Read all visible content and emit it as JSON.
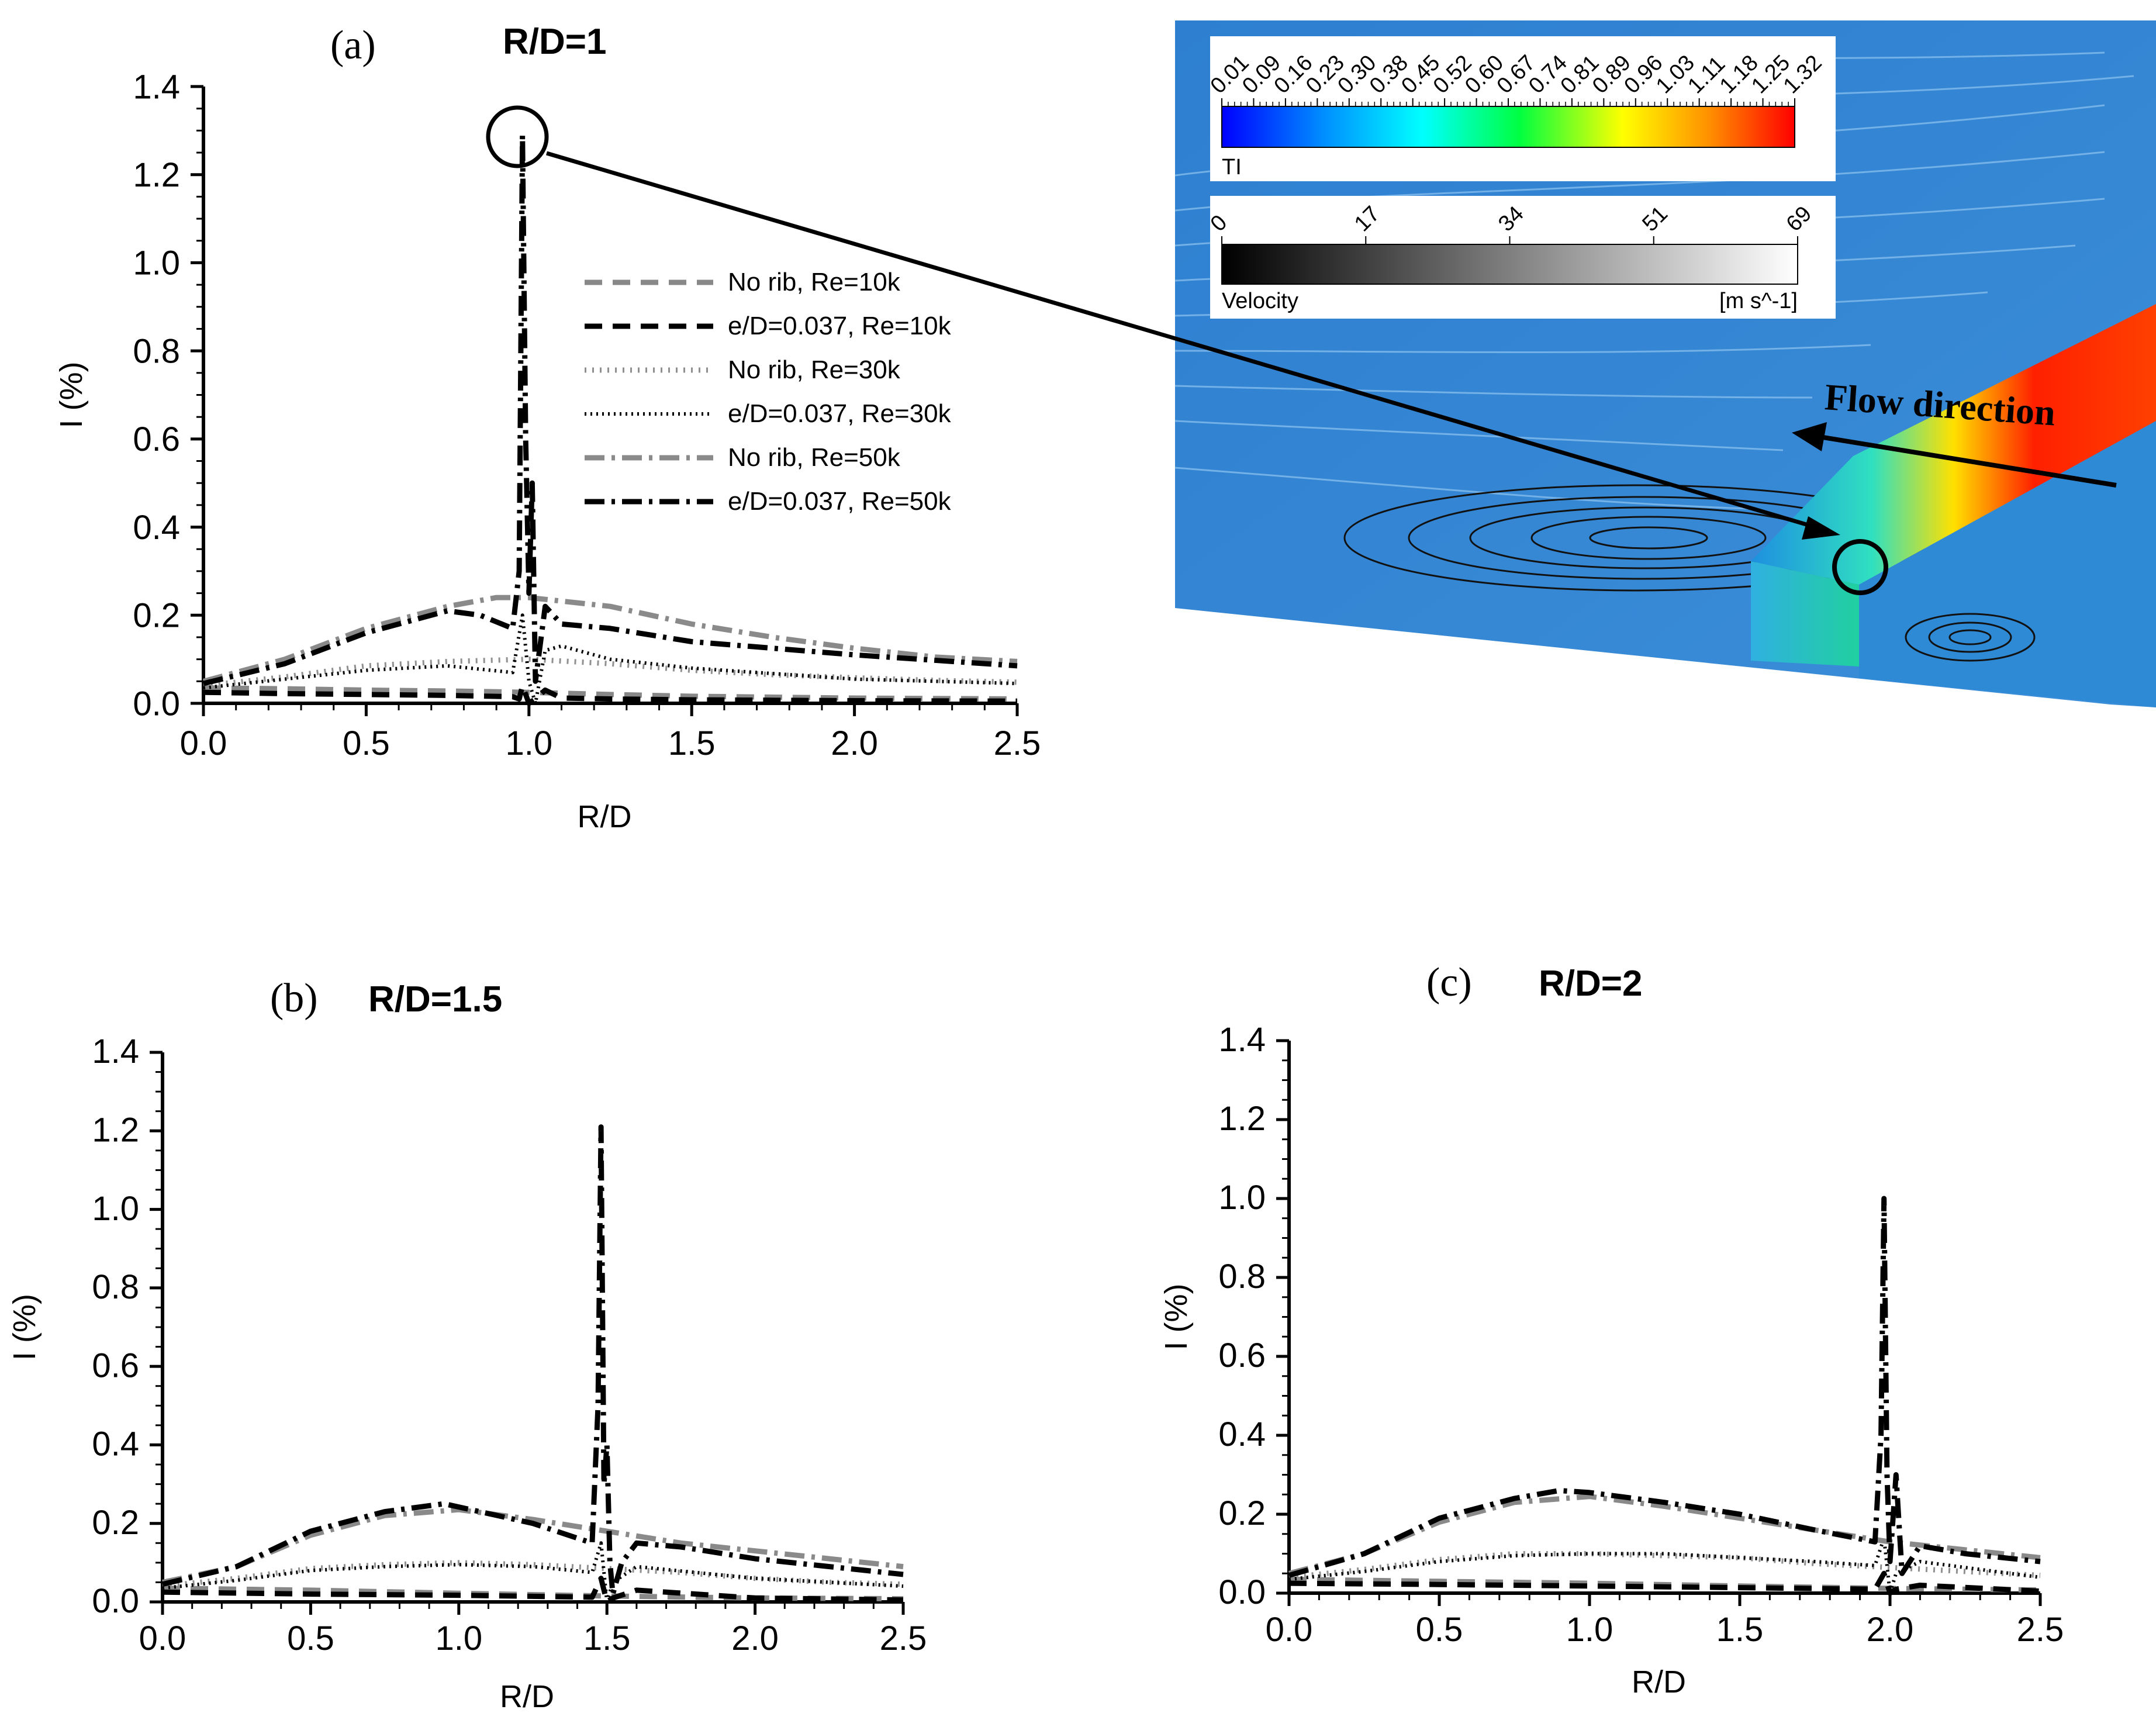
{
  "colors": {
    "black": "#000000",
    "gray": "#888888",
    "lightgray": "#9a9a9a"
  },
  "series_styles": [
    {
      "name": "No rib, Re=10k",
      "color": "#888888",
      "dash": "30,18",
      "width": 9
    },
    {
      "name": "e/D=0.037, Re=10k",
      "color": "#000000",
      "dash": "30,18",
      "width": 9
    },
    {
      "name": "No rib, Re=30k",
      "color": "#909090",
      "dash": "3,10",
      "width": 9
    },
    {
      "name": "e/D=0.037, Re=30k",
      "color": "#000000",
      "dash": "3,7",
      "width": 6
    },
    {
      "name": "No rib, Re=50k",
      "color": "#8a8a8a",
      "dash": "34,12,6,12",
      "width": 9
    },
    {
      "name": "e/D=0.037, Re=50k",
      "color": "#000000",
      "dash": "34,12,6,12",
      "width": 9
    }
  ],
  "chart_data": [
    {
      "type": "line",
      "panel": "(a)",
      "title": "R/D=1",
      "xlabel": "R/D",
      "ylabel": "I (%)",
      "xlim": [
        0,
        2.5
      ],
      "ylim": [
        0,
        1.4
      ],
      "xticks": [
        "0.0",
        "0.5",
        "1.0",
        "1.5",
        "2.0",
        "2.5"
      ],
      "yticks": [
        "0.0",
        "0.2",
        "0.4",
        "0.6",
        "0.8",
        "1.0",
        "1.2",
        "1.4"
      ],
      "legend": [
        "No rib, Re=10k",
        "e/D=0.037, Re=10k",
        "No rib, Re=30k",
        "e/D=0.037, Re=30k",
        "No rib, Re=50k",
        "e/D=0.037, Re=50k"
      ],
      "series": [
        {
          "name": "No rib, Re=10k",
          "x": [
            0,
            0.25,
            0.5,
            0.75,
            1.0,
            1.25,
            1.5,
            2.0,
            2.5
          ],
          "values": [
            0.035,
            0.033,
            0.03,
            0.028,
            0.025,
            0.02,
            0.016,
            0.012,
            0.01
          ]
        },
        {
          "name": "e/D=0.037, Re=10k",
          "x": [
            0,
            0.25,
            0.5,
            0.75,
            0.95,
            0.97,
            0.98,
            1.0,
            1.02,
            1.05,
            1.1,
            1.25,
            1.5,
            2.0,
            2.5
          ],
          "values": [
            0.025,
            0.022,
            0.02,
            0.018,
            0.015,
            0.01,
            0.04,
            0.0,
            0.01,
            0.03,
            0.012,
            0.01,
            0.008,
            0.006,
            0.005
          ]
        },
        {
          "name": "No rib, Re=30k",
          "x": [
            0,
            0.25,
            0.5,
            0.75,
            1.0,
            1.25,
            1.5,
            1.75,
            2.0,
            2.25,
            2.5
          ],
          "values": [
            0.04,
            0.06,
            0.085,
            0.095,
            0.1,
            0.09,
            0.075,
            0.065,
            0.058,
            0.052,
            0.048
          ]
        },
        {
          "name": "e/D=0.037, Re=30k",
          "x": [
            0,
            0.25,
            0.5,
            0.75,
            0.95,
            0.98,
            1.0,
            1.02,
            1.05,
            1.1,
            1.25,
            1.5,
            2.0,
            2.5
          ],
          "values": [
            0.035,
            0.055,
            0.075,
            0.085,
            0.07,
            0.2,
            0.05,
            0.0,
            0.12,
            0.13,
            0.1,
            0.08,
            0.055,
            0.045
          ]
        },
        {
          "name": "No rib, Re=50k",
          "x": [
            0,
            0.25,
            0.5,
            0.75,
            0.9,
            1.0,
            1.25,
            1.5,
            1.75,
            2.0,
            2.25,
            2.5
          ],
          "values": [
            0.05,
            0.1,
            0.17,
            0.22,
            0.24,
            0.24,
            0.22,
            0.18,
            0.15,
            0.125,
            0.105,
            0.095
          ]
        },
        {
          "name": "e/D=0.037, Re=50k",
          "x": [
            0,
            0.25,
            0.5,
            0.75,
            0.85,
            0.95,
            0.97,
            0.98,
            0.99,
            1.0,
            1.01,
            1.02,
            1.05,
            1.1,
            1.25,
            1.5,
            2.0,
            2.5
          ],
          "values": [
            0.045,
            0.09,
            0.16,
            0.21,
            0.2,
            0.17,
            0.3,
            1.29,
            0.6,
            0.25,
            0.5,
            0.05,
            0.22,
            0.18,
            0.17,
            0.14,
            0.11,
            0.085
          ]
        }
      ]
    },
    {
      "type": "line",
      "panel": "(b)",
      "title": "R/D=1.5",
      "xlabel": "R/D",
      "ylabel": "I (%)",
      "xlim": [
        0,
        2.5
      ],
      "ylim": [
        0,
        1.4
      ],
      "xticks": [
        "0.0",
        "0.5",
        "1.0",
        "1.5",
        "2.0",
        "2.5"
      ],
      "yticks": [
        "0.0",
        "0.2",
        "0.4",
        "0.6",
        "0.8",
        "1.0",
        "1.2",
        "1.4"
      ],
      "series": [
        {
          "name": "No rib, Re=10k",
          "x": [
            0,
            0.5,
            1.0,
            1.5,
            2.0,
            2.5
          ],
          "values": [
            0.035,
            0.03,
            0.022,
            0.015,
            0.01,
            0.008
          ]
        },
        {
          "name": "e/D=0.037, Re=10k",
          "x": [
            0,
            0.5,
            1.0,
            1.45,
            1.48,
            1.5,
            1.52,
            1.6,
            2.0,
            2.5
          ],
          "values": [
            0.025,
            0.02,
            0.017,
            0.012,
            0.06,
            0.0,
            0.01,
            0.03,
            0.01,
            0.005
          ]
        },
        {
          "name": "No rib, Re=30k",
          "x": [
            0,
            0.25,
            0.5,
            0.75,
            1.0,
            1.25,
            1.5,
            1.75,
            2.0,
            2.25,
            2.5
          ],
          "values": [
            0.04,
            0.06,
            0.085,
            0.095,
            0.1,
            0.095,
            0.085,
            0.075,
            0.06,
            0.05,
            0.045
          ]
        },
        {
          "name": "e/D=0.037, Re=30k",
          "x": [
            0,
            0.25,
            0.5,
            0.75,
            1.0,
            1.25,
            1.45,
            1.48,
            1.5,
            1.52,
            1.6,
            2.0,
            2.5
          ],
          "values": [
            0.035,
            0.055,
            0.08,
            0.09,
            0.095,
            0.09,
            0.075,
            0.15,
            0.0,
            0.05,
            0.09,
            0.06,
            0.04
          ]
        },
        {
          "name": "No rib, Re=50k",
          "x": [
            0,
            0.25,
            0.5,
            0.75,
            1.0,
            1.25,
            1.5,
            1.75,
            2.0,
            2.25,
            2.5
          ],
          "values": [
            0.05,
            0.09,
            0.17,
            0.22,
            0.235,
            0.21,
            0.18,
            0.15,
            0.13,
            0.11,
            0.09
          ]
        },
        {
          "name": "e/D=0.037, Re=50k",
          "x": [
            0,
            0.25,
            0.5,
            0.75,
            0.95,
            1.25,
            1.45,
            1.47,
            1.48,
            1.49,
            1.5,
            1.51,
            1.52,
            1.55,
            1.6,
            1.75,
            2.0,
            2.5
          ],
          "values": [
            0.045,
            0.09,
            0.18,
            0.23,
            0.25,
            0.2,
            0.15,
            0.5,
            1.21,
            0.3,
            0.4,
            0.1,
            0.02,
            0.1,
            0.15,
            0.14,
            0.11,
            0.07
          ]
        }
      ]
    },
    {
      "type": "line",
      "panel": "(c)",
      "title": "R/D=2",
      "xlabel": "R/D",
      "ylabel": "I (%)",
      "xlim": [
        0,
        2.5
      ],
      "ylim": [
        0,
        1.4
      ],
      "xticks": [
        "0.0",
        "0.5",
        "1.0",
        "1.5",
        "2.0",
        "2.5"
      ],
      "yticks": [
        "0.0",
        "0.2",
        "0.4",
        "0.6",
        "0.8",
        "1.0",
        "1.2",
        "1.4"
      ],
      "series": [
        {
          "name": "No rib, Re=10k",
          "x": [
            0,
            0.5,
            1.0,
            1.5,
            2.0,
            2.5
          ],
          "values": [
            0.035,
            0.03,
            0.025,
            0.018,
            0.012,
            0.008
          ]
        },
        {
          "name": "e/D=0.037, Re=10k",
          "x": [
            0,
            0.5,
            1.0,
            1.5,
            1.95,
            1.98,
            2.0,
            2.02,
            2.1,
            2.5
          ],
          "values": [
            0.025,
            0.022,
            0.018,
            0.014,
            0.01,
            0.05,
            0.0,
            0.01,
            0.02,
            0.005
          ]
        },
        {
          "name": "No rib, Re=30k",
          "x": [
            0,
            0.25,
            0.5,
            0.75,
            1.0,
            1.25,
            1.5,
            1.75,
            2.0,
            2.25,
            2.5
          ],
          "values": [
            0.04,
            0.06,
            0.085,
            0.1,
            0.1,
            0.095,
            0.09,
            0.075,
            0.065,
            0.055,
            0.045
          ]
        },
        {
          "name": "e/D=0.037, Re=30k",
          "x": [
            0,
            0.25,
            0.5,
            0.75,
            1.0,
            1.25,
            1.5,
            1.75,
            1.95,
            1.98,
            2.0,
            2.02,
            2.1,
            2.5
          ],
          "values": [
            0.035,
            0.055,
            0.08,
            0.095,
            0.1,
            0.1,
            0.09,
            0.08,
            0.07,
            0.14,
            0.0,
            0.05,
            0.08,
            0.04
          ]
        },
        {
          "name": "No rib, Re=50k",
          "x": [
            0,
            0.25,
            0.5,
            0.75,
            1.0,
            1.25,
            1.5,
            1.75,
            2.0,
            2.25,
            2.5
          ],
          "values": [
            0.05,
            0.1,
            0.18,
            0.23,
            0.245,
            0.22,
            0.19,
            0.16,
            0.13,
            0.11,
            0.09
          ]
        },
        {
          "name": "e/D=0.037, Re=50k",
          "x": [
            0,
            0.25,
            0.5,
            0.75,
            0.9,
            1.0,
            1.25,
            1.5,
            1.75,
            1.95,
            1.97,
            1.98,
            1.99,
            2.0,
            2.02,
            2.04,
            2.1,
            2.25,
            2.5
          ],
          "values": [
            0.045,
            0.1,
            0.19,
            0.24,
            0.26,
            0.255,
            0.23,
            0.2,
            0.16,
            0.13,
            0.4,
            1.0,
            0.3,
            0.08,
            0.3,
            0.05,
            0.12,
            0.1,
            0.08
          ]
        }
      ]
    }
  ],
  "inset": {
    "ti_ticks": [
      "0.01",
      "0.09",
      "0.16",
      "0.23",
      "0.30",
      "0.38",
      "0.45",
      "0.52",
      "0.60",
      "0.67",
      "0.74",
      "0.81",
      "0.89",
      "0.96",
      "1.03",
      "1.11",
      "1.18",
      "1.25",
      "1.32"
    ],
    "ti_label": "TI",
    "vel_ticks": [
      "0",
      "17",
      "34",
      "51",
      "69"
    ],
    "vel_label": "Velocity",
    "vel_unit": "[m s^-1]",
    "flow_label": "Flow direction"
  }
}
